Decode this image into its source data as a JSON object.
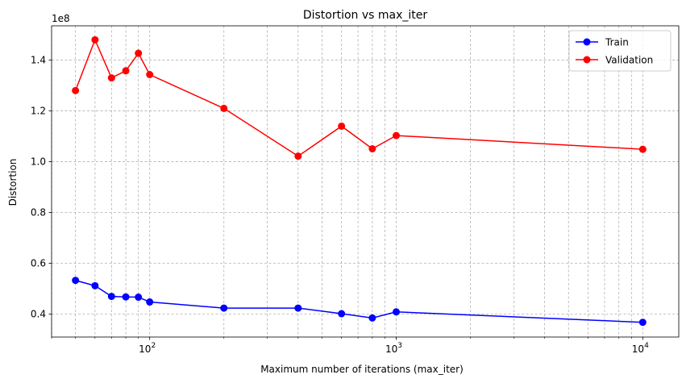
{
  "chart_data": {
    "type": "line",
    "title": "Distortion vs max_iter",
    "xlabel": "Maximum number of iterations (max_iter)",
    "ylabel": "Distortion",
    "y_offset_label": "1e8",
    "x_scale": "log",
    "xlim": [
      40,
      14000
    ],
    "ylim": [
      0.31,
      1.535
    ],
    "grid": true,
    "grid_style": "dashed, major and minor",
    "legend_position": "top-right",
    "x_major_ticks": [
      {
        "value": 100,
        "base": "10",
        "exp": "2"
      },
      {
        "value": 1000,
        "base": "10",
        "exp": "3"
      },
      {
        "value": 10000,
        "base": "10",
        "exp": "4"
      }
    ],
    "x_minor_ticks": [
      40,
      50,
      60,
      70,
      80,
      90,
      200,
      300,
      400,
      500,
      600,
      700,
      800,
      900,
      2000,
      3000,
      4000,
      5000,
      6000,
      7000,
      8000,
      9000
    ],
    "y_ticks": [
      {
        "value": 0.4,
        "label": "0.4"
      },
      {
        "value": 0.6,
        "label": "0.6"
      },
      {
        "value": 0.8,
        "label": "0.8"
      },
      {
        "value": 1.0,
        "label": "1.0"
      },
      {
        "value": 1.2,
        "label": "1.2"
      },
      {
        "value": 1.4,
        "label": "1.4"
      }
    ],
    "x": [
      50,
      60,
      70,
      80,
      90,
      100,
      200,
      400,
      600,
      800,
      1000,
      10000
    ],
    "series": [
      {
        "name": "Train",
        "color": "#0000ff",
        "marker": "circle",
        "values": [
          0.533,
          0.512,
          0.47,
          0.468,
          0.467,
          0.448,
          0.424,
          0.424,
          0.402,
          0.385,
          0.409,
          0.368
        ]
      },
      {
        "name": "Validation",
        "color": "#ff0000",
        "marker": "circle",
        "values": [
          1.28,
          1.48,
          1.33,
          1.358,
          1.427,
          1.343,
          1.21,
          1.022,
          1.14,
          1.051,
          1.103,
          1.049
        ]
      }
    ]
  }
}
